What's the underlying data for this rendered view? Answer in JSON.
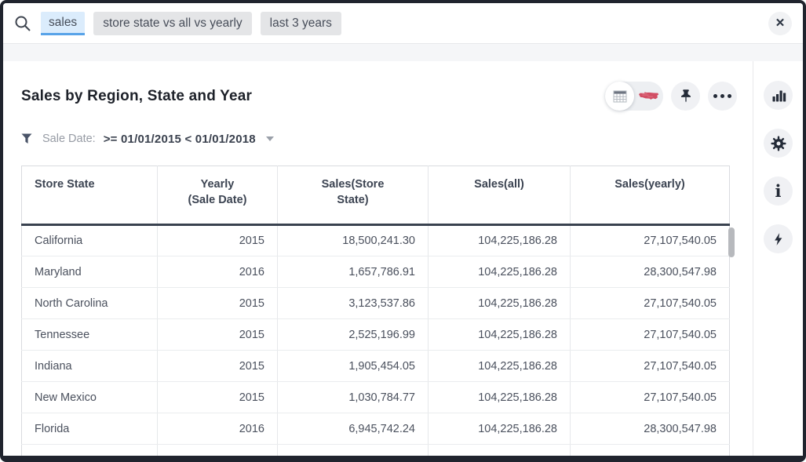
{
  "search": {
    "tokens": [
      {
        "text": "sales",
        "active": true
      },
      {
        "text": "store state vs all vs yearly",
        "active": false
      },
      {
        "text": "last 3 years",
        "active": false
      }
    ],
    "close_glyph": "✕"
  },
  "header": {
    "title": "Sales by Region, State and Year"
  },
  "toolbar": {
    "icons": [
      "table-view-icon",
      "map-chart-view-icon",
      "pin-icon",
      "more-options-icon"
    ]
  },
  "filter": {
    "label": "Sale Date:",
    "value": ">= 01/01/2015 < 01/01/2018"
  },
  "table": {
    "columns": [
      {
        "lines": [
          "Store State"
        ]
      },
      {
        "lines": [
          "Yearly",
          "(Sale Date)"
        ]
      },
      {
        "lines": [
          "Sales(Store",
          "State)"
        ]
      },
      {
        "lines": [
          "Sales(all)"
        ]
      },
      {
        "lines": [
          "Sales(yearly)"
        ]
      }
    ],
    "rows": [
      [
        "California",
        "2015",
        "18,500,241.30",
        "104,225,186.28",
        "27,107,540.05"
      ],
      [
        "Maryland",
        "2016",
        "1,657,786.91",
        "104,225,186.28",
        "28,300,547.98"
      ],
      [
        "North Carolina",
        "2015",
        "3,123,537.86",
        "104,225,186.28",
        "27,107,540.05"
      ],
      [
        "Tennessee",
        "2015",
        "2,525,196.99",
        "104,225,186.28",
        "27,107,540.05"
      ],
      [
        "Indiana",
        "2015",
        "1,905,454.05",
        "104,225,186.28",
        "27,107,540.05"
      ],
      [
        "New Mexico",
        "2015",
        "1,030,784.77",
        "104,225,186.28",
        "27,107,540.05"
      ],
      [
        "Florida",
        "2016",
        "6,945,742.24",
        "104,225,186.28",
        "28,300,547.98"
      ]
    ]
  },
  "sidebar": {
    "icons": [
      "bar-chart-icon",
      "gear-icon",
      "info-icon",
      "lightning-icon"
    ],
    "info_glyph": "i"
  },
  "colors": {
    "accent_blue": "#58a3e8",
    "token_blue_bg": "#dbecfc",
    "token_gray_bg": "#e4e5e7",
    "map_red": "#cf4058",
    "icon_dark": "#242b38",
    "header_rule": "#39424f"
  }
}
